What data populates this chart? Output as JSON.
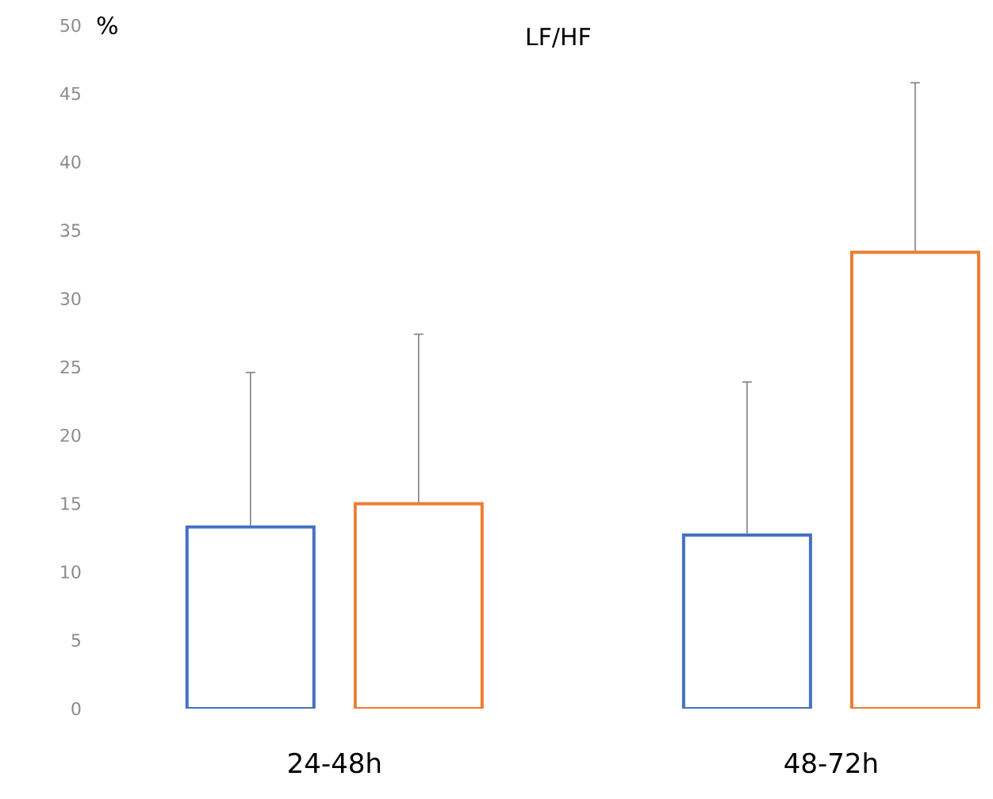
{
  "chart_data": {
    "type": "bar",
    "title": "LF/HF",
    "ylabel": "%",
    "categories": [
      "24-48h",
      "48-72h"
    ],
    "series": [
      {
        "color": "#4472c4",
        "values": [
          13.3,
          12.7
        ],
        "errors": [
          [
            13.3,
            24.6
          ],
          [
            12.7,
            23.9
          ]
        ]
      },
      {
        "color": "#ed7d31",
        "values": [
          15.0,
          33.4
        ],
        "errors": [
          [
            15.0,
            27.4
          ],
          [
            33.4,
            45.8
          ]
        ]
      }
    ],
    "ylim": [
      0,
      50
    ],
    "yticks": [
      0,
      5,
      10,
      15,
      20,
      25,
      30,
      35,
      40,
      45,
      50
    ]
  }
}
